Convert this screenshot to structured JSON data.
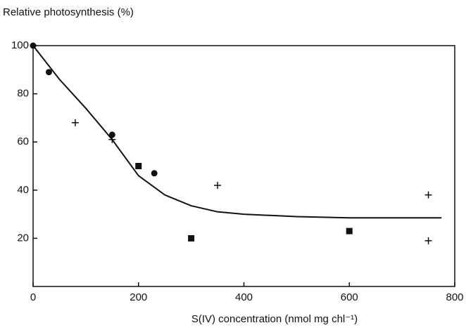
{
  "chart_data": {
    "type": "scatter",
    "y_label": "Relative photosynthesis (%)",
    "x_label": "S(IV) concentration (nmol mg chl⁻¹)",
    "xlim": [
      0,
      800
    ],
    "xticks": [
      0,
      200,
      400,
      600,
      800
    ],
    "ylim": [
      0,
      100
    ],
    "yticks": [
      20,
      40,
      60,
      80,
      100
    ],
    "color": "#111111",
    "series": [
      {
        "marker": "circle",
        "x": [
          0,
          30,
          150,
          230
        ],
        "values": [
          100,
          89,
          63,
          47
        ]
      },
      {
        "marker": "plus",
        "x": [
          80,
          150,
          350,
          750,
          750
        ],
        "values": [
          68,
          61,
          42,
          38,
          19
        ]
      },
      {
        "marker": "square",
        "x": [
          200,
          300,
          600
        ],
        "values": [
          50,
          20,
          23
        ]
      },
      {
        "marker": "line",
        "x": [
          0,
          50,
          100,
          150,
          200,
          250,
          300,
          350,
          400,
          500,
          600,
          700,
          775
        ],
        "values": [
          100,
          86,
          74,
          61,
          46,
          38,
          33.5,
          31,
          30,
          29,
          28.5,
          28.5,
          28.5
        ]
      }
    ]
  }
}
